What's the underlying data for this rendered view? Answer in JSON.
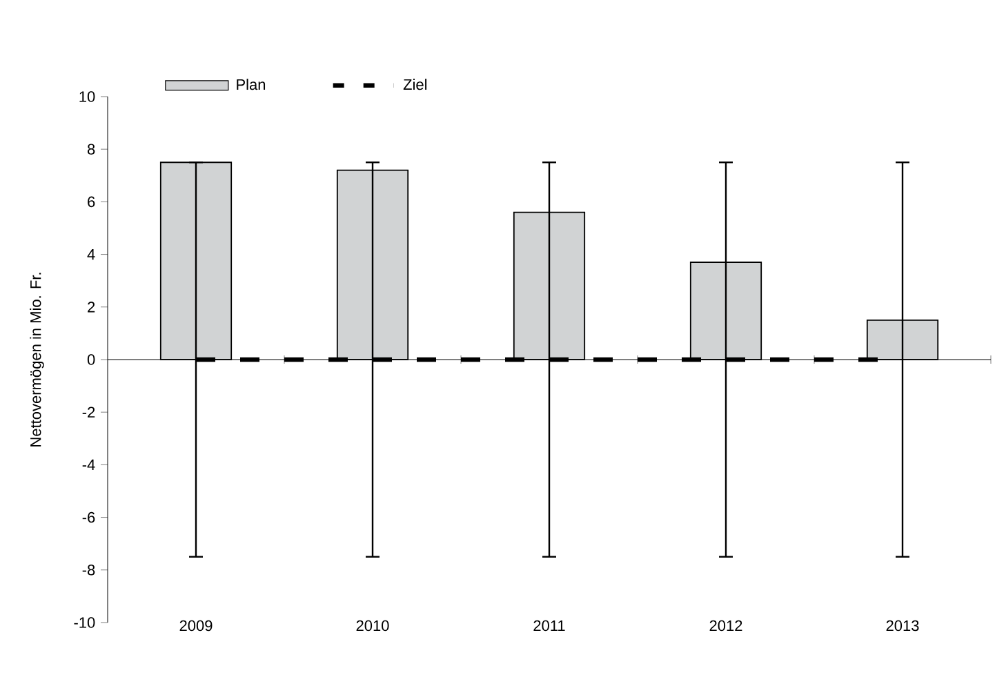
{
  "chart_data": {
    "type": "bar",
    "ylabel": "Nettovermögen in Mio. Fr.",
    "categories": [
      "2009",
      "2010",
      "2011",
      "2012",
      "2013"
    ],
    "series": [
      {
        "name": "Plan",
        "color": "#d1d3d4",
        "values": [
          7.5,
          7.2,
          5.6,
          3.7,
          1.5
        ],
        "errors": [
          [
            -7.5,
            7.5
          ],
          [
            -7.5,
            7.5
          ],
          [
            -7.5,
            7.5
          ],
          [
            -7.5,
            7.5
          ],
          [
            -7.5,
            7.5
          ]
        ]
      },
      {
        "name": "Ziel",
        "type": "line",
        "color": "#000000",
        "line_style": "dashed",
        "values": [
          0,
          0,
          0,
          0,
          0
        ]
      }
    ],
    "ylim": [
      -10,
      10
    ],
    "yticks": [
      -10,
      -8,
      -6,
      -4,
      -2,
      0,
      2,
      4,
      6,
      8,
      10
    ],
    "grid": false,
    "legend": "top",
    "marker": "none"
  }
}
